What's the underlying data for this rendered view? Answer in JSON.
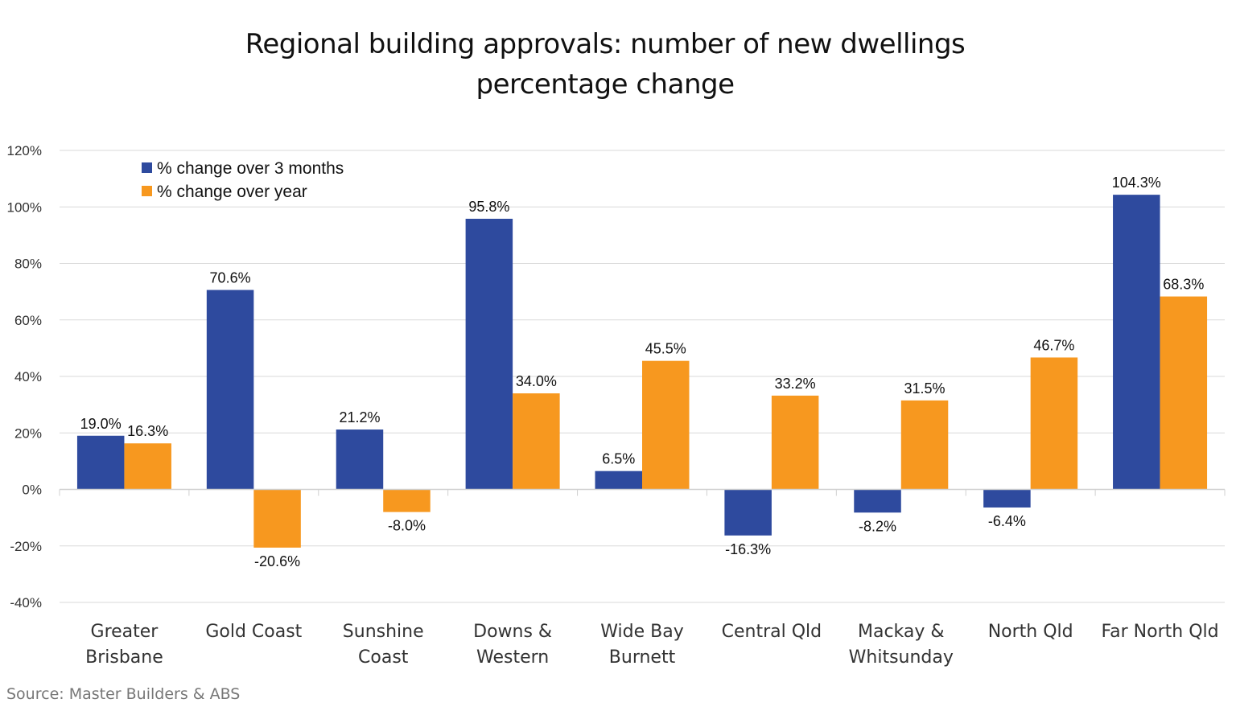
{
  "chart_data": {
    "type": "bar",
    "title_lines": [
      "Regional building approvals: number of new dwellings",
      "percentage change"
    ],
    "categories": [
      [
        "Greater",
        "Brisbane"
      ],
      [
        "Gold Coast"
      ],
      [
        "Sunshine",
        "Coast"
      ],
      [
        "Downs &",
        "Western"
      ],
      [
        "Wide Bay",
        "Burnett"
      ],
      [
        "Central Qld"
      ],
      [
        "Mackay &",
        "Whitsunday"
      ],
      [
        "North Qld"
      ],
      [
        "Far North Qld"
      ]
    ],
    "series": [
      {
        "name": "% change over 3 months",
        "color": "#2E4A9E",
        "values": [
          19.0,
          70.6,
          21.2,
          95.8,
          6.5,
          -16.3,
          -8.2,
          -6.4,
          104.3
        ],
        "labels": [
          "19.0%",
          "70.6%",
          "21.2%",
          "95.8%",
          "6.5%",
          "-16.3%",
          "-8.2%",
          "-6.4%",
          "104.3%"
        ]
      },
      {
        "name": "% change over year",
        "color": "#F7981F",
        "values": [
          16.3,
          -20.6,
          -8.0,
          34.0,
          45.5,
          33.2,
          31.5,
          46.7,
          68.3
        ],
        "labels": [
          "16.3%",
          "-20.6%",
          "-8.0%",
          "34.0%",
          "45.5%",
          "33.2%",
          "31.5%",
          "46.7%",
          "68.3%"
        ]
      }
    ],
    "ylim": [
      -40,
      120
    ],
    "yticks": [
      120,
      100,
      80,
      60,
      40,
      20,
      0,
      -20,
      -40
    ],
    "ytick_labels": [
      "120%",
      "100%",
      "80%",
      "60%",
      "40%",
      "20%",
      "0%",
      "-20%",
      "-40%"
    ],
    "grid": true,
    "legend": "top-left",
    "xlabel": "",
    "ylabel": ""
  },
  "source": "Source:  Master Builders & ABS"
}
